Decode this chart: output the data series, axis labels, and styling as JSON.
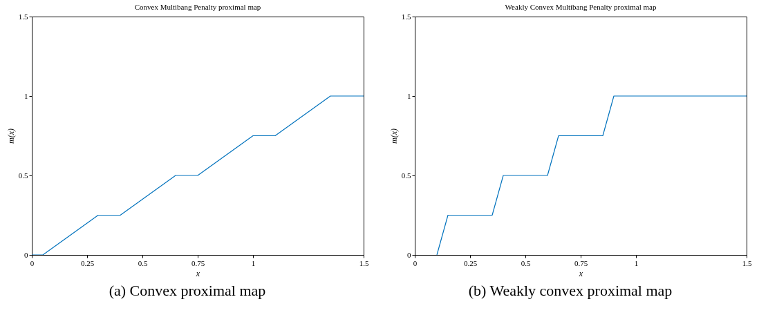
{
  "chart_data": [
    {
      "type": "line",
      "title": "Convex Multibang Penalty proximal map",
      "xlabel": "x",
      "ylabel": "m(x)",
      "annotations": [
        "(a) Convex proximal map"
      ],
      "x": [
        0,
        0.05,
        0.3,
        0.4,
        0.65,
        0.75,
        1,
        1.1,
        1.35,
        1.5
      ],
      "series": [
        {
          "color": "#0072bd",
          "values": [
            0,
            0,
            0.25,
            0.25,
            0.5,
            0.5,
            0.75,
            0.75,
            1,
            1
          ]
        }
      ],
      "xlim": [
        0,
        1.5
      ],
      "xticks": [
        0,
        0.25,
        0.5,
        0.75,
        1,
        1.5
      ],
      "ylim": [
        0,
        1.5
      ],
      "yticks": [
        0,
        0.5,
        1,
        1.5
      ],
      "grid": false,
      "legend": false
    },
    {
      "type": "line",
      "title": "Weakly Convex Multibang Penalty proximal map",
      "xlabel": "x",
      "ylabel": "m(x)",
      "annotations": [
        "(b) Weakly convex proximal map"
      ],
      "x": [
        0.1,
        0.15,
        0.35,
        0.4,
        0.6,
        0.65,
        0.85,
        0.9,
        1.5
      ],
      "series": [
        {
          "color": "#0072bd",
          "values": [
            0,
            0.25,
            0.25,
            0.5,
            0.5,
            0.75,
            0.75,
            1,
            1
          ]
        }
      ],
      "xlim": [
        0,
        1.5
      ],
      "xticks": [
        0,
        0.25,
        0.5,
        0.75,
        1,
        1.5
      ],
      "ylim": [
        0,
        1.5
      ],
      "yticks": [
        0,
        0.5,
        1,
        1.5
      ],
      "grid": false,
      "legend": false
    }
  ]
}
